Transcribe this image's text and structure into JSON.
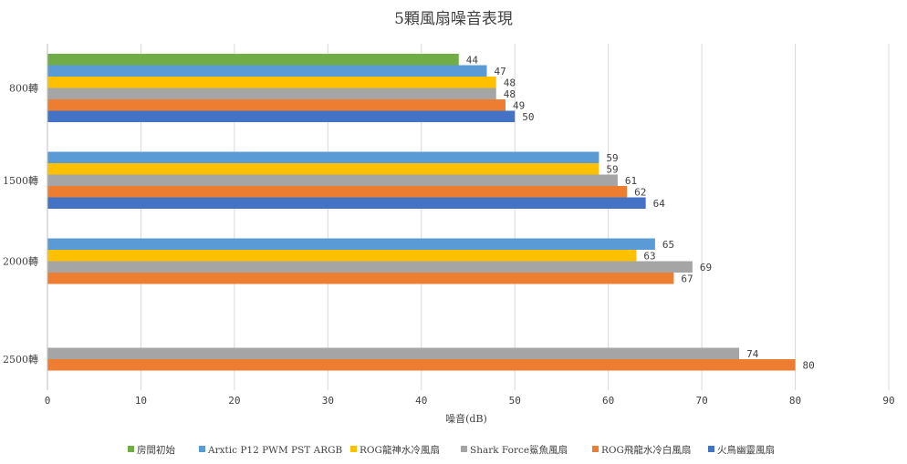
{
  "chart_data": {
    "type": "bar",
    "orientation": "horizontal",
    "title": "5顆風扇噪音表現",
    "xlabel": "噪音(dB)",
    "ylabel": "",
    "xlim": [
      0,
      90
    ],
    "x_ticks": [
      0,
      10,
      20,
      30,
      40,
      50,
      60,
      70,
      80,
      90
    ],
    "grid": "vertical",
    "legend_position": "bottom",
    "categories": [
      "800轉",
      "1500轉",
      "2000轉",
      "2500轉"
    ],
    "series": [
      {
        "name": "房間初始",
        "color": "#70ad47",
        "values": [
          44,
          null,
          null,
          null
        ]
      },
      {
        "name": "Arxtic P12 PWM PST ARGB",
        "color": "#5b9bd5",
        "values": [
          47,
          59,
          65,
          null
        ]
      },
      {
        "name": "ROG龍神水冷風扇",
        "color": "#ffc000",
        "values": [
          48,
          59,
          63,
          null
        ]
      },
      {
        "name": "Shark Force鯊魚風扇",
        "color": "#a5a5a5",
        "values": [
          48,
          61,
          69,
          74
        ]
      },
      {
        "name": "ROG飛龍水冷白風扇",
        "color": "#ed7d31",
        "values": [
          49,
          62,
          67,
          80
        ]
      },
      {
        "name": "火鳥幽靈風扇",
        "color": "#4472c4",
        "values": [
          50,
          64,
          null,
          null
        ]
      }
    ]
  }
}
